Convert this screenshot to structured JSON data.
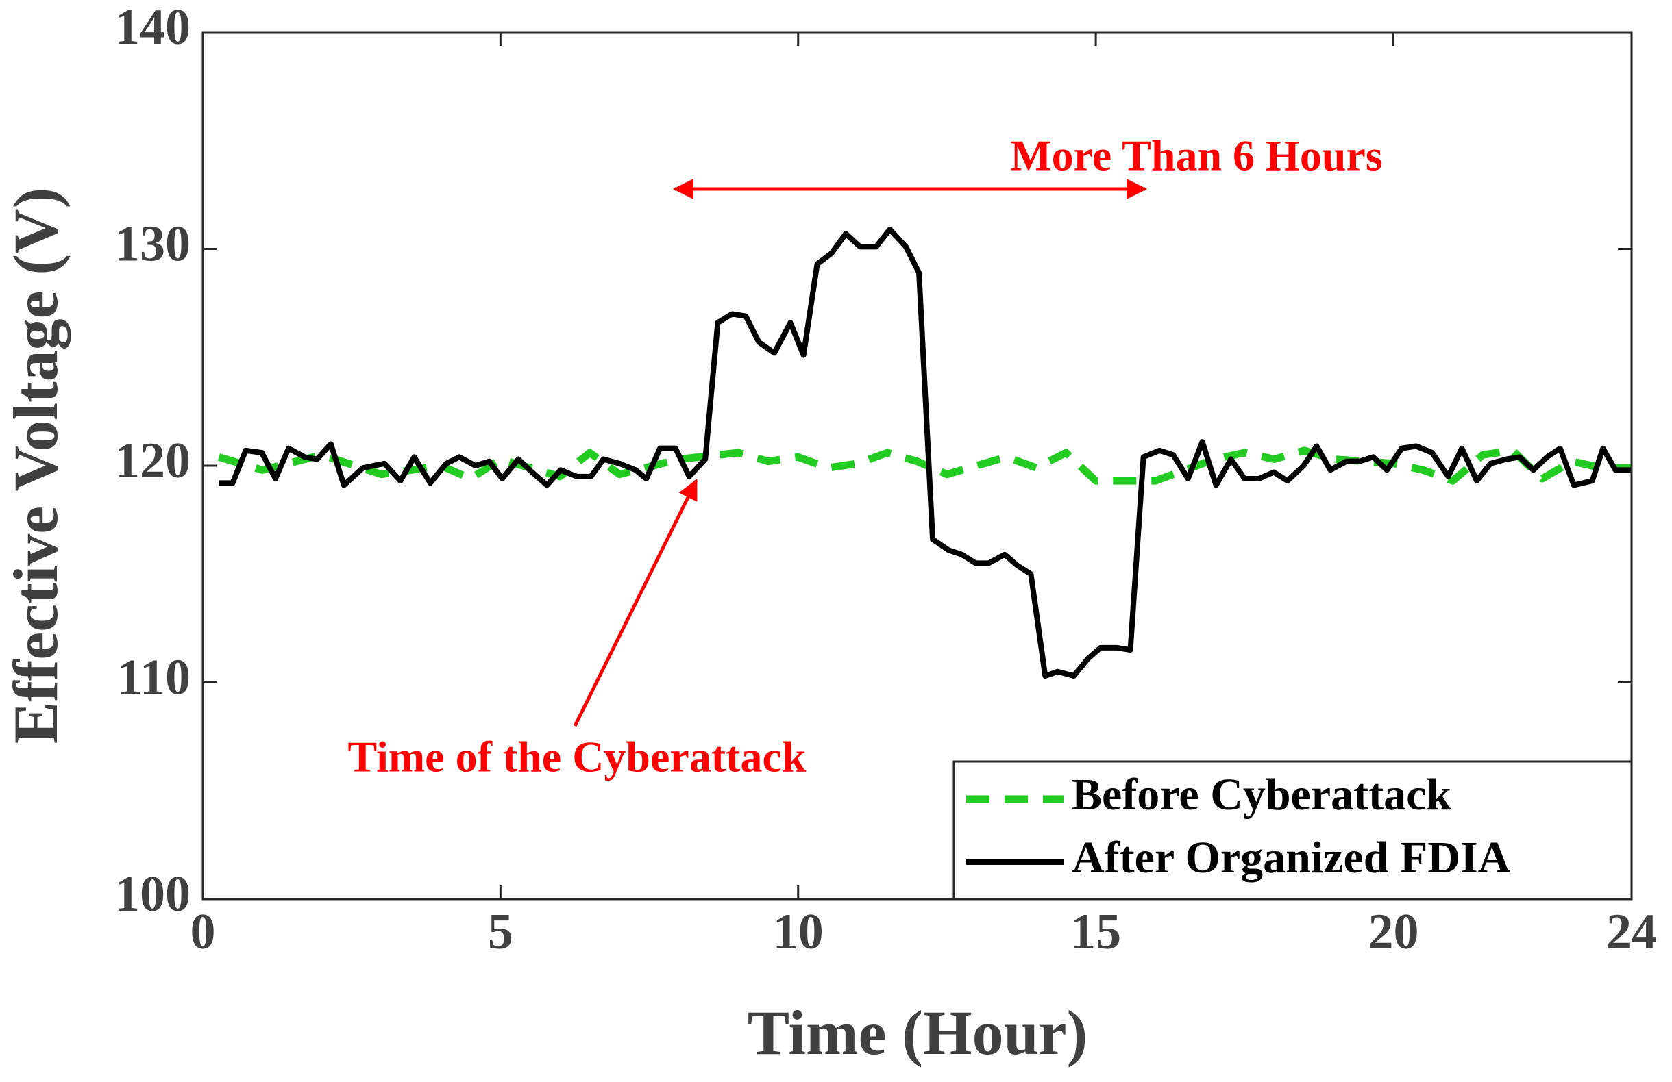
{
  "chart_data": {
    "type": "line",
    "xlabel": "Time (Hour)",
    "ylabel": "Effective Voltage (V)",
    "xlim": [
      0,
      24
    ],
    "ylim": [
      100,
      140
    ],
    "xticks": [
      0,
      5,
      10,
      15,
      20,
      24
    ],
    "yticks": [
      100,
      110,
      120,
      130,
      140
    ],
    "legend": "lower right",
    "annotations": [
      "More Than 6 Hours",
      "Time of the Cyberattack"
    ],
    "series": [
      {
        "name": "Before Cyberattack",
        "color": "#22cc22",
        "dashed": true,
        "x": [
          0.27,
          1,
          2,
          3,
          4,
          4.5,
          5,
          6,
          6.5,
          7,
          8,
          9,
          9.5,
          10,
          10.5,
          11,
          11.5,
          12,
          12.5,
          13,
          13.5,
          14,
          14.5,
          15,
          15.5,
          16,
          16.5,
          17,
          17.5,
          18,
          18.5,
          19,
          19.5,
          20,
          20.5,
          21,
          21.5,
          22,
          22.5,
          23,
          23.5,
          24
        ],
        "values": [
          120.4,
          119.8,
          120.5,
          119.6,
          120,
          119.4,
          120.3,
          119.5,
          120.6,
          119.6,
          120.3,
          120.6,
          120.2,
          120.4,
          119.9,
          120.1,
          120.6,
          120.2,
          119.6,
          120,
          120.4,
          119.9,
          120.6,
          119.3,
          119.3,
          119.3,
          119.8,
          120.3,
          120.6,
          120.3,
          120.7,
          120.3,
          120.2,
          120.1,
          119.8,
          119.3,
          120.5,
          120.7,
          119.4,
          120.2,
          119.9,
          119.9
        ]
      },
      {
        "name": "After Organized FDIA",
        "color": "#000000",
        "dashed": false,
        "x": [
          0.27,
          0.5,
          0.72,
          0.99,
          1.22,
          1.44,
          1.71,
          1.92,
          2.15,
          2.37,
          2.69,
          3.05,
          3.32,
          3.55,
          3.82,
          4.09,
          4.31,
          4.58,
          4.81,
          5.03,
          5.3,
          5.53,
          5.78,
          6.01,
          6.28,
          6.52,
          6.73,
          7,
          7.27,
          7.45,
          7.68,
          7.94,
          8.17,
          8.44,
          8.65,
          8.89,
          9.12,
          9.34,
          9.6,
          9.87,
          10.09,
          10.32,
          10.56,
          10.8,
          11.04,
          11.31,
          11.54,
          11.81,
          12.03,
          12.26,
          12.53,
          12.75,
          12.98,
          13.2,
          13.47,
          13.68,
          13.91,
          14.15,
          14.36,
          14.63,
          14.87,
          15.08,
          15.35,
          15.58,
          15.8,
          16.07,
          16.3,
          16.55,
          16.79,
          17.02,
          17.27,
          17.5,
          17.74,
          17.99,
          18.22,
          18.49,
          18.71,
          18.94,
          19.21,
          19.43,
          19.66,
          19.89,
          20.14,
          20.38,
          20.65,
          20.92,
          21.15,
          21.4,
          21.63,
          21.9,
          22.12,
          22.35,
          22.58,
          22.8,
          23.03,
          23.34,
          23.52,
          23.73,
          24
        ],
        "values": [
          119.2,
          119.2,
          120.7,
          120.6,
          119.4,
          120.8,
          120.4,
          120.3,
          121,
          119.1,
          119.9,
          120.1,
          119.3,
          120.4,
          119.2,
          120.1,
          120.4,
          120,
          120.2,
          119.4,
          120.3,
          119.7,
          119.1,
          119.8,
          119.5,
          119.5,
          120.3,
          120.1,
          119.8,
          119.4,
          120.8,
          120.8,
          119.5,
          120.3,
          126.6,
          127,
          126.9,
          125.7,
          125.2,
          126.6,
          125.1,
          129.3,
          129.8,
          130.7,
          130.1,
          130.1,
          130.9,
          130.1,
          128.9,
          116.6,
          116.1,
          115.9,
          115.5,
          115.5,
          115.9,
          115.4,
          115,
          110.3,
          110.5,
          110.3,
          111.1,
          111.6,
          111.6,
          111.5,
          120.4,
          120.7,
          120.5,
          119.4,
          121.1,
          119.1,
          120.3,
          119.4,
          119.4,
          119.7,
          119.3,
          120,
          120.9,
          119.8,
          120.2,
          120.2,
          120.4,
          119.8,
          120.8,
          120.9,
          120.6,
          119.5,
          120.8,
          119.3,
          120.1,
          120.3,
          120.4,
          119.8,
          120.4,
          120.8,
          119.1,
          119.3,
          120.8,
          119.8,
          119.8
        ]
      }
    ]
  }
}
